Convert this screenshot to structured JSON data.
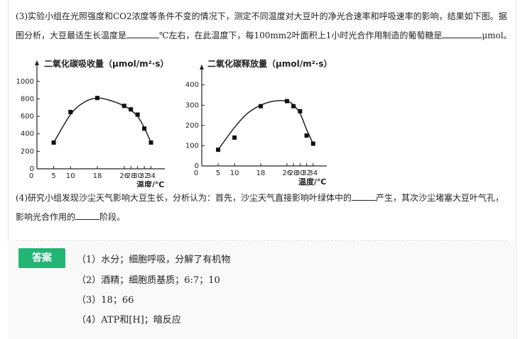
{
  "question3": {
    "part1": "(3)实验小组在光照强度和CO2浓度等条件不变的情况下，测定不同温度对大豆叶的净光合速率和呼吸速率的影响，结果如下图。据",
    "part2": "图分析，大豆最适生长温度是",
    "part3": "℃左右，在此温度下，每100mm2叶面积上1小时光合作用制造的葡萄糖是",
    "unit": "μmol。"
  },
  "chart_data": [
    {
      "type": "scatter",
      "title": "二氧化碳吸收量（μmol/m²·s）",
      "xlabel": "温度/℃",
      "ylabel": "",
      "x_ticks": [
        0,
        5,
        10,
        18,
        26,
        28,
        30,
        32,
        34
      ],
      "y_ticks": [
        0,
        200,
        400,
        600,
        800,
        1000
      ],
      "ylim": [
        0,
        1000
      ],
      "points": [
        {
          "x": 5,
          "y": 300
        },
        {
          "x": 10,
          "y": 650
        },
        {
          "x": 18,
          "y": 810
        },
        {
          "x": 26,
          "y": 720
        },
        {
          "x": 28,
          "y": 680
        },
        {
          "x": 30,
          "y": 620
        },
        {
          "x": 32,
          "y": 460
        },
        {
          "x": 34,
          "y": 300
        }
      ],
      "curve": [
        [
          5,
          300
        ],
        [
          10,
          620
        ],
        [
          14,
          760
        ],
        [
          18,
          810
        ],
        [
          22,
          780
        ],
        [
          26,
          720
        ],
        [
          28,
          670
        ],
        [
          30,
          600
        ],
        [
          32,
          470
        ],
        [
          34,
          300
        ]
      ]
    },
    {
      "type": "scatter",
      "title": "二氧化碳释放量（μmol/m²·s）",
      "xlabel": "温度/℃",
      "ylabel": "",
      "x_ticks": [
        0,
        5,
        10,
        18,
        26,
        28,
        30,
        32,
        34
      ],
      "y_ticks": [
        0,
        100,
        200,
        300,
        400
      ],
      "ylim": [
        0,
        400
      ],
      "points": [
        {
          "x": 5,
          "y": 80
        },
        {
          "x": 10,
          "y": 140
        },
        {
          "x": 18,
          "y": 295
        },
        {
          "x": 26,
          "y": 320
        },
        {
          "x": 28,
          "y": 295
        },
        {
          "x": 30,
          "y": 270
        },
        {
          "x": 32,
          "y": 150
        },
        {
          "x": 34,
          "y": 110
        }
      ],
      "curve": [
        [
          5,
          80
        ],
        [
          10,
          190
        ],
        [
          14,
          260
        ],
        [
          18,
          300
        ],
        [
          22,
          320
        ],
        [
          26,
          320
        ],
        [
          28,
          300
        ],
        [
          30,
          260
        ],
        [
          32,
          180
        ],
        [
          34,
          110
        ]
      ]
    }
  ],
  "question4": {
    "part1": "(4)研究小组发现沙尘天气影响大豆生长，分析认为：首先，沙尘天气直接影响叶绿体中的",
    "part2": "产生，其次沙尘堵塞大豆叶气孔，",
    "part3": "影响光合作用的",
    "part4": "阶段。"
  },
  "answer": {
    "button_label": "答案",
    "lines": [
      "（1）水分；细胞呼吸，分解了有机物",
      "（2）酒精；细胞质基质；6:7；10",
      "（3）18；66",
      "（4）ATP和[H]；暗反应"
    ]
  },
  "colors": {
    "answer_button": "#22b573"
  }
}
